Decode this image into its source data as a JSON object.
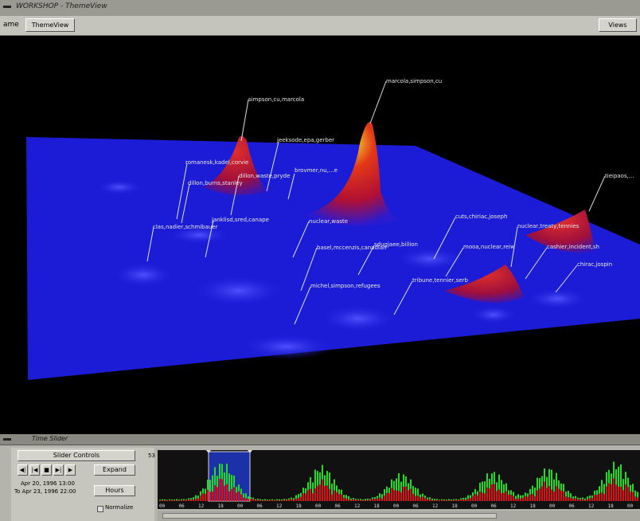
{
  "window": {
    "title": "WORKSHOP - ThemeView"
  },
  "menubar": {
    "label": "ame",
    "tab_label": "ThemeView",
    "views_label": "Views"
  },
  "landscape": {
    "peak_labels": [
      "simpson,cu,marcola",
      "marcola,simpson,cu",
      "jeeksode,epa,gerber",
      "romanesk,kadel,corvie",
      "brovmer,nu,...e",
      "dillon,burns,stanley",
      "dillon,waste,pryde",
      "janklisd,sred,canape",
      "clas,nadier,schmibauer",
      "nuclear,waste",
      "cuts,chiriac,joseph",
      "nuclear,treaty,tennies",
      "mooa,nuclear,reiw",
      "sdugjaee,billion",
      "basel,mccenzis,canadian",
      "tribune,tennier,serb",
      "cashier,incident,sh",
      "chirac,jospin",
      "michel,simpson,refugees",
      "tieipaos,..."
    ]
  },
  "time_slider": {
    "title": "Time Slider",
    "controls_label": "Slider Controls",
    "nav_buttons": [
      "◀|",
      "|◀",
      "■",
      "▶|",
      "▶"
    ],
    "date_from": "Apr 20, 1996 13:00",
    "date_to": "To Apr 23, 1996 22:00",
    "expand_label": "Expand",
    "units_label": "Hours",
    "normalize_label": "Normalize",
    "count_label": "53",
    "tick_labels": [
      "00",
      "06",
      "12",
      "18",
      "00",
      "06",
      "12",
      "18",
      "00",
      "06",
      "12",
      "18",
      "00",
      "06",
      "12",
      "18",
      "00",
      "06",
      "12",
      "18",
      "00",
      "06",
      "12",
      "18",
      "00"
    ]
  },
  "colors": {
    "low": "#1a1ad8",
    "mid": "#d60b1e",
    "peak": "#f2e020",
    "histogram_green": "#22dd22",
    "histogram_red": "#dd1111",
    "selection": "#1c31a8"
  }
}
